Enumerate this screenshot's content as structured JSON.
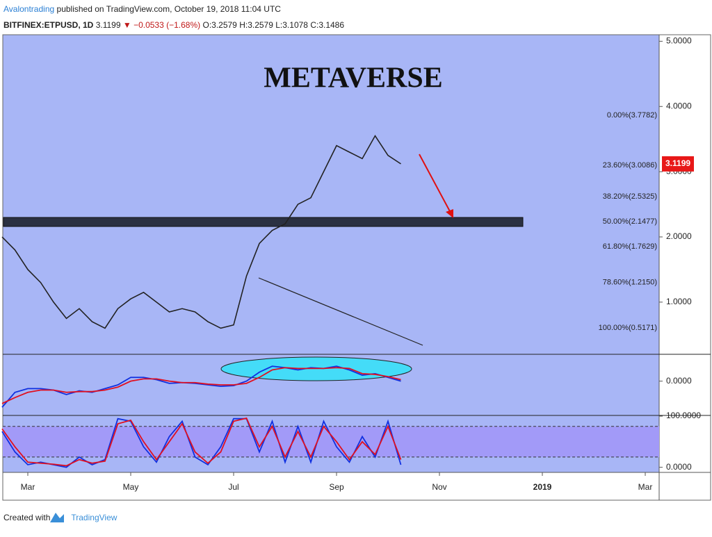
{
  "header": {
    "author": "Avalontrading",
    "published": "published on TradingView.com, October 19, 2018 11:04 UTC",
    "symbol": "BITFINEX:ETPUSD, 1D",
    "last": "3.1199",
    "change": "▼ −0.0533 (−1.68%)",
    "ohlc": [
      "O:3.2579",
      "H:3.2579",
      "L:3.1078",
      "C:3.1486"
    ]
  },
  "chart_data": [
    {
      "type": "line",
      "title": "METAVERSE",
      "color": "#222222",
      "categories": [
        null,
        null,
        "Mar",
        null,
        null,
        null,
        null,
        null,
        null,
        null,
        "May",
        null,
        null,
        null,
        null,
        null,
        null,
        null,
        "Jul",
        null,
        null,
        null,
        null,
        null,
        null,
        null,
        "Sep",
        null,
        null,
        null,
        null,
        null,
        null,
        null,
        "Nov",
        null,
        null,
        null,
        null,
        null,
        null,
        null,
        "2019",
        null,
        null,
        null,
        null,
        null,
        null,
        null,
        "Mar"
      ],
      "values": [
        2.0,
        1.8,
        1.5,
        1.3,
        1.0,
        0.75,
        0.9,
        0.7,
        0.6,
        0.9,
        1.05,
        1.15,
        1.0,
        0.85,
        0.9,
        0.85,
        0.7,
        0.6,
        0.65,
        1.4,
        1.9,
        2.1,
        2.2,
        2.5,
        2.6,
        3.0,
        3.4,
        3.3,
        3.2,
        3.55,
        3.25,
        3.12,
        null,
        null,
        null,
        null,
        null,
        null,
        null,
        null,
        null,
        null,
        null,
        null,
        null,
        null,
        null,
        null,
        null,
        null,
        null
      ],
      "ylim": [
        0.2,
        5.1
      ],
      "yticks": [
        {
          "value": 1,
          "label": "1.0000"
        },
        {
          "value": 2,
          "label": "2.0000"
        },
        {
          "value": 3,
          "label": "3.0000"
        },
        {
          "value": 4,
          "label": "4.0000"
        },
        {
          "value": 5,
          "label": "5.0000"
        }
      ],
      "last_price": {
        "value": 3.1199,
        "label": "3.1199"
      },
      "fib_levels": [
        {
          "value": 3.7782,
          "label": "0.00%(3.7782)"
        },
        {
          "value": 3.0086,
          "label": "23.60%(3.0086)"
        },
        {
          "value": 2.5325,
          "label": "38.20%(2.5325)"
        },
        {
          "value": 2.1477,
          "label": "50.00%(2.1477)"
        },
        {
          "value": 1.7629,
          "label": "61.80%(1.7629)"
        },
        {
          "value": 1.215,
          "label": "78.60%(1.2150)"
        },
        {
          "value": 0.5171,
          "label": "100.00%(0.5171)"
        }
      ]
    },
    {
      "type": "line",
      "ylim": [
        -0.45,
        0.35
      ],
      "yticks": [
        {
          "value": 0,
          "label": "0.0000"
        }
      ],
      "series": [
        {
          "color": "#1030e0",
          "values": [
            -0.35,
            -0.15,
            -0.1,
            -0.1,
            -0.12,
            -0.18,
            -0.13,
            -0.15,
            -0.1,
            -0.05,
            0.05,
            0.05,
            0.02,
            -0.03,
            -0.02,
            -0.03,
            -0.05,
            -0.07,
            -0.06,
            0.0,
            0.12,
            0.2,
            0.18,
            0.15,
            0.18,
            0.17,
            0.2,
            0.15,
            0.08,
            0.1,
            0.05,
            0.0,
            null,
            null,
            null,
            null,
            null,
            null,
            null,
            null,
            null,
            null,
            null,
            null,
            null,
            null,
            null,
            null,
            null,
            null,
            null
          ]
        },
        {
          "color": "#e01020",
          "values": [
            -0.3,
            -0.22,
            -0.15,
            -0.12,
            -0.12,
            -0.15,
            -0.14,
            -0.14,
            -0.12,
            -0.08,
            0.0,
            0.03,
            0.03,
            0.0,
            -0.02,
            -0.02,
            -0.04,
            -0.05,
            -0.05,
            -0.03,
            0.05,
            0.15,
            0.18,
            0.17,
            0.17,
            0.17,
            0.18,
            0.17,
            0.1,
            0.09,
            0.06,
            0.02,
            null,
            null,
            null,
            null,
            null,
            null,
            null,
            null,
            null,
            null,
            null,
            null,
            null,
            null,
            null,
            null,
            null,
            null,
            null
          ]
        }
      ]
    },
    {
      "type": "line",
      "ylim": [
        -10,
        100
      ],
      "yticks": [
        {
          "value": 100,
          "label": "100.0000"
        },
        {
          "value": 0,
          "label": "0.0000"
        }
      ],
      "levels": [
        20,
        80
      ],
      "series": [
        {
          "color": "#1030e0",
          "values": [
            70,
            30,
            5,
            10,
            5,
            0,
            20,
            5,
            15,
            95,
            90,
            40,
            10,
            60,
            90,
            20,
            5,
            40,
            95,
            95,
            30,
            90,
            10,
            80,
            10,
            90,
            40,
            10,
            60,
            20,
            90,
            5,
            null,
            null,
            null,
            null,
            null,
            null,
            null,
            null,
            null,
            null,
            null,
            null,
            null,
            null,
            null,
            null,
            null,
            null,
            null
          ]
        },
        {
          "color": "#e01020",
          "values": [
            75,
            40,
            10,
            8,
            6,
            3,
            15,
            8,
            12,
            85,
            92,
            50,
            15,
            50,
            85,
            30,
            8,
            30,
            90,
            96,
            40,
            80,
            20,
            70,
            20,
            80,
            50,
            15,
            50,
            25,
            80,
            15,
            null,
            null,
            null,
            null,
            null,
            null,
            null,
            null,
            null,
            null,
            null,
            null,
            null,
            null,
            null,
            null,
            null,
            null,
            null
          ]
        }
      ]
    }
  ],
  "footer": {
    "created": "Created with",
    "brand": "TradingView"
  }
}
